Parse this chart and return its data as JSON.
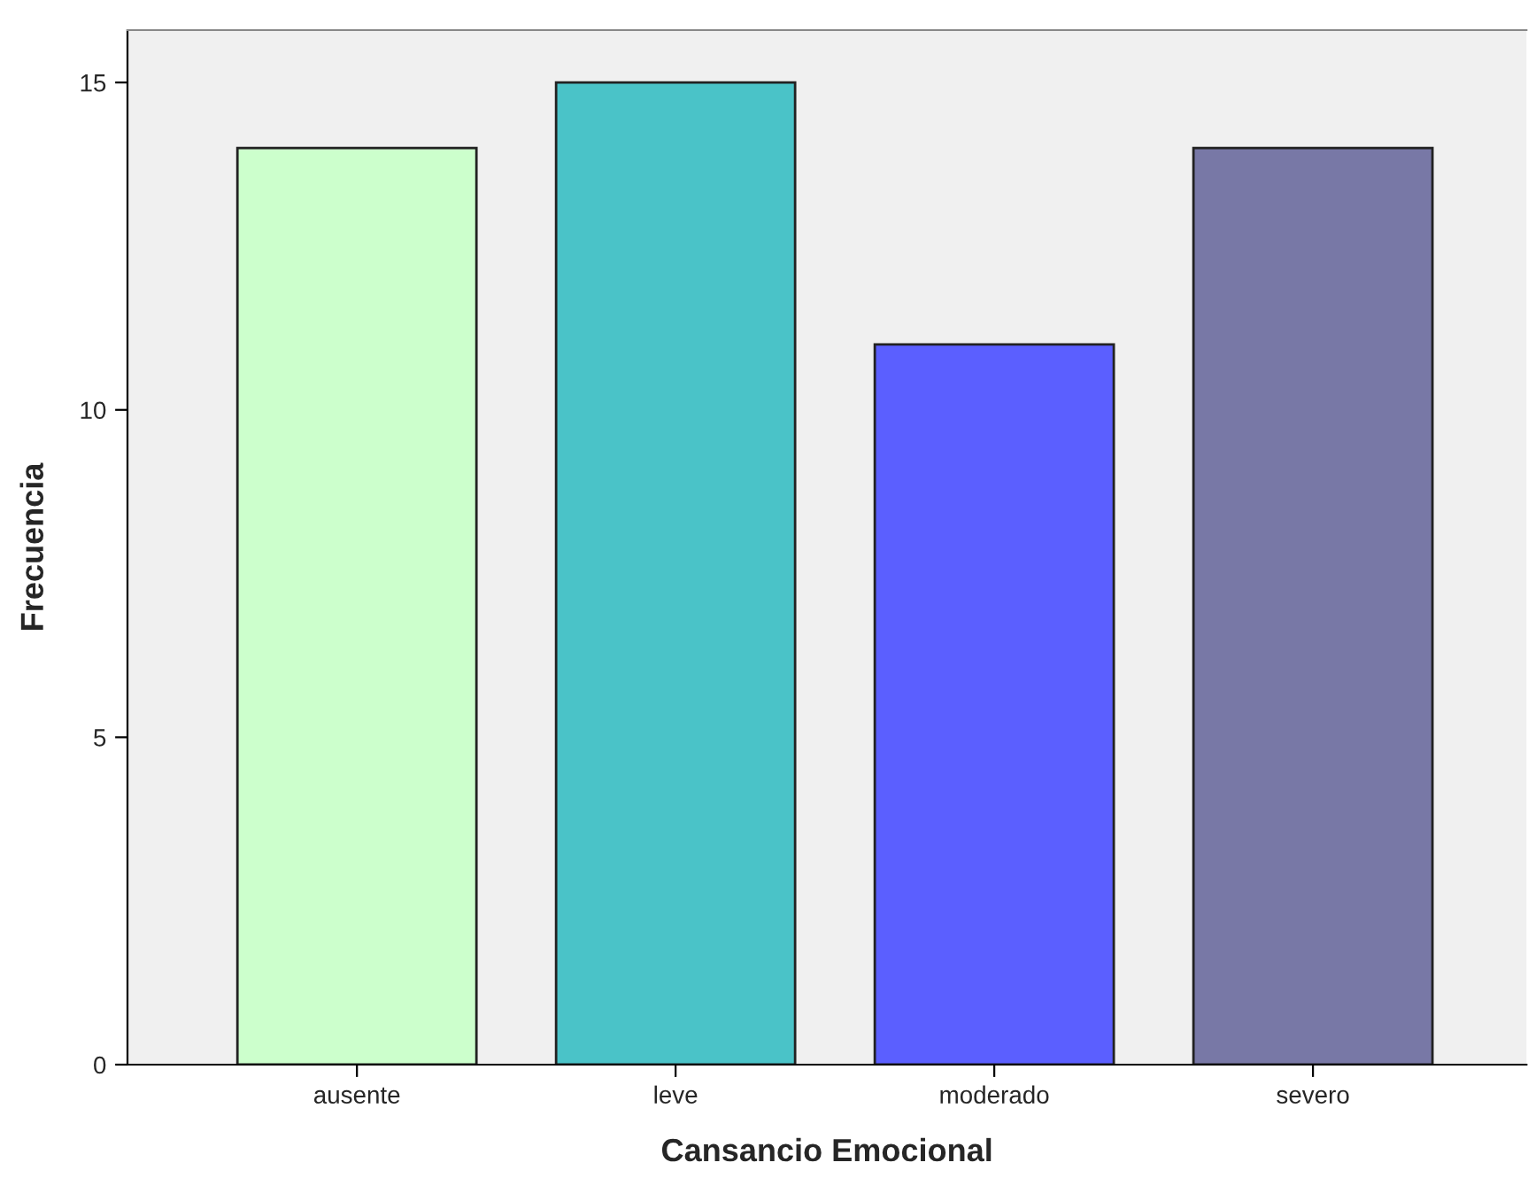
{
  "chart_data": {
    "type": "bar",
    "xlabel": "Cansancio Emocional",
    "ylabel": "Frecuencia",
    "categories": [
      "ausente",
      "leve",
      "moderado",
      "severo"
    ],
    "values": [
      14,
      15,
      11,
      14
    ],
    "colors": [
      "#ccffcc",
      "#4ac3c8",
      "#5b5fff",
      "#7878a6"
    ],
    "ylim": [
      0,
      15.8
    ],
    "yticks": [
      0,
      5,
      10,
      15
    ],
    "grid": false,
    "legend": false
  }
}
